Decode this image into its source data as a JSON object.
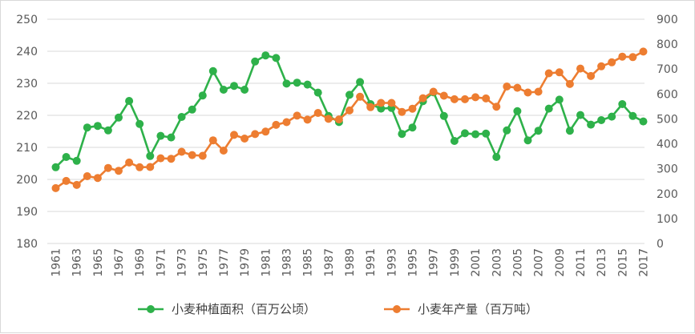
{
  "chart_data": {
    "type": "line",
    "title": "",
    "xlabel": "",
    "ylabel_left": "",
    "ylabel_right": "",
    "legend_position": "bottom",
    "grid": true,
    "x": [
      1961,
      1962,
      1963,
      1964,
      1965,
      1966,
      1967,
      1968,
      1969,
      1970,
      1971,
      1972,
      1973,
      1974,
      1975,
      1976,
      1977,
      1978,
      1979,
      1980,
      1981,
      1982,
      1983,
      1984,
      1985,
      1986,
      1987,
      1988,
      1989,
      1990,
      1991,
      1992,
      1993,
      1994,
      1995,
      1996,
      1997,
      1998,
      1999,
      2000,
      2001,
      2002,
      2003,
      2004,
      2005,
      2006,
      2007,
      2008,
      2009,
      2010,
      2011,
      2012,
      2013,
      2014,
      2015,
      2016,
      2017
    ],
    "x_tick_labels": [
      "1961",
      "1963",
      "1965",
      "1967",
      "1969",
      "1971",
      "1973",
      "1975",
      "1977",
      "1979",
      "1981",
      "1983",
      "1985",
      "1987",
      "1989",
      "1991",
      "1993",
      "1995",
      "1997",
      "1999",
      "2001",
      "2003",
      "2005",
      "2007",
      "2009",
      "2011",
      "2013",
      "2015",
      "2017"
    ],
    "y_left": {
      "min": 180,
      "max": 250,
      "ticks": [
        180,
        190,
        200,
        210,
        220,
        230,
        240,
        250
      ]
    },
    "y_right": {
      "min": 0,
      "max": 900,
      "ticks": [
        0,
        100,
        200,
        300,
        400,
        500,
        600,
        700,
        800,
        900
      ]
    },
    "series": [
      {
        "name": "小麦种植面积（百万公顷）",
        "axis": "left",
        "color": "#2eb14a",
        "values": [
          203.8,
          207.0,
          205.8,
          216.2,
          216.7,
          215.3,
          219.3,
          224.5,
          217.3,
          207.3,
          213.6,
          213.1,
          219.5,
          221.8,
          226.2,
          233.8,
          228.0,
          229.2,
          228.0,
          236.8,
          238.7,
          237.9,
          229.9,
          230.2,
          229.6,
          227.1,
          219.8,
          217.9,
          226.4,
          230.4,
          223.5,
          222.1,
          222.3,
          214.2,
          216.2,
          224.4,
          227.2,
          219.8,
          212.0,
          214.4,
          214.1,
          214.3,
          207.0,
          215.3,
          221.3,
          212.2,
          215.2,
          222.1,
          224.9,
          215.2,
          220.1,
          217.1,
          218.5,
          219.6,
          223.5,
          219.8,
          218.1
        ]
      },
      {
        "name": "小麦年产量（百万吨）",
        "axis": "right",
        "color": "#ed7d31",
        "values": [
          222,
          251,
          235,
          270,
          263,
          303,
          292,
          325,
          306,
          307,
          342,
          340,
          368,
          355,
          352,
          414,
          373,
          436,
          421,
          439,
          449,
          476,
          487,
          513,
          497,
          524,
          500,
          498,
          534,
          589,
          547,
          564,
          564,
          528,
          541,
          583,
          609,
          593,
          579,
          579,
          587,
          582,
          549,
          630,
          625,
          606,
          609,
          683,
          687,
          640,
          702,
          672,
          711,
          727,
          750,
          748,
          770
        ]
      }
    ]
  }
}
